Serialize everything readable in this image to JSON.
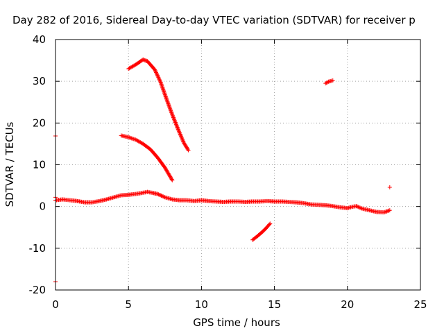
{
  "chart_data": {
    "type": "scatter",
    "title": "Day 282 of 2016, Sidereal Day-to-day VTEC variation (SDTVAR) for receiver p",
    "xlabel": "GPS time / hours",
    "ylabel": "SDTVAR / TECUs",
    "xlim": [
      0,
      25
    ],
    "ylim": [
      -20,
      40
    ],
    "xticks": [
      "0",
      "5",
      "10",
      "15",
      "20",
      "25"
    ],
    "yticks": [
      "-20",
      "-10",
      "0",
      "10",
      "20",
      "30",
      "40"
    ],
    "grid": true,
    "legend": "none",
    "marker": "+",
    "color": "#ff0000",
    "series": [
      {
        "points": [
          [
            0,
            1.5
          ],
          [
            0.5,
            1.7
          ],
          [
            1,
            1.5
          ],
          [
            1.5,
            1.3
          ],
          [
            2,
            1.0
          ],
          [
            2.5,
            1.0
          ],
          [
            3,
            1.3
          ],
          [
            3.5,
            1.7
          ],
          [
            4,
            2.2
          ],
          [
            4.5,
            2.7
          ],
          [
            5,
            2.8
          ],
          [
            5.5,
            3.0
          ],
          [
            6,
            3.3
          ],
          [
            6.3,
            3.5
          ],
          [
            6.6,
            3.3
          ],
          [
            7,
            3.0
          ],
          [
            7.5,
            2.2
          ],
          [
            8,
            1.7
          ],
          [
            8.5,
            1.5
          ],
          [
            9,
            1.5
          ],
          [
            9.5,
            1.3
          ],
          [
            10,
            1.5
          ],
          [
            10.5,
            1.3
          ],
          [
            11,
            1.2
          ],
          [
            11.5,
            1.1
          ],
          [
            12,
            1.2
          ],
          [
            12.5,
            1.2
          ],
          [
            13,
            1.1
          ],
          [
            13.5,
            1.2
          ],
          [
            14,
            1.2
          ],
          [
            14.5,
            1.3
          ],
          [
            15,
            1.2
          ],
          [
            15.5,
            1.2
          ],
          [
            16,
            1.1
          ],
          [
            16.5,
            1.0
          ],
          [
            17,
            0.8
          ],
          [
            17.5,
            0.5
          ],
          [
            18,
            0.4
          ],
          [
            18.5,
            0.3
          ],
          [
            19,
            0.1
          ],
          [
            19.5,
            -0.2
          ],
          [
            20,
            -0.4
          ],
          [
            20.3,
            -0.1
          ],
          [
            20.6,
            0.1
          ],
          [
            21,
            -0.5
          ],
          [
            21.5,
            -0.9
          ],
          [
            22,
            -1.3
          ],
          [
            22.5,
            -1.4
          ],
          [
            22.9,
            -0.9
          ]
        ]
      },
      {
        "points": [
          [
            5,
            33.0
          ],
          [
            5.5,
            34.0
          ],
          [
            6,
            35.2
          ],
          [
            6.3,
            34.8
          ],
          [
            6.8,
            32.8
          ],
          [
            7.2,
            29.8
          ],
          [
            7.6,
            25.8
          ],
          [
            8,
            22.0
          ],
          [
            8.4,
            18.5
          ],
          [
            8.8,
            15.2
          ],
          [
            9.1,
            13.5
          ]
        ]
      },
      {
        "points": [
          [
            4.5,
            17.0
          ],
          [
            5,
            16.6
          ],
          [
            5.5,
            16.0
          ],
          [
            6,
            15.0
          ],
          [
            6.5,
            13.7
          ],
          [
            7,
            11.7
          ],
          [
            7.5,
            9.3
          ],
          [
            8,
            6.3
          ]
        ]
      },
      {
        "points": [
          [
            13.5,
            -8.0
          ],
          [
            13.8,
            -7.2
          ],
          [
            14.1,
            -6.3
          ],
          [
            14.4,
            -5.3
          ],
          [
            14.7,
            -4.1
          ]
        ]
      },
      {
        "points": [
          [
            18.5,
            29.5
          ],
          [
            18.7,
            29.9
          ],
          [
            18.9,
            30.1
          ],
          [
            19.0,
            30.2
          ]
        ]
      },
      {
        "points": [
          [
            0,
            16.9
          ],
          [
            0,
            2.2
          ],
          [
            0,
            1.5
          ],
          [
            0,
            -18.0
          ],
          [
            22.9,
            4.6
          ]
        ]
      }
    ]
  }
}
